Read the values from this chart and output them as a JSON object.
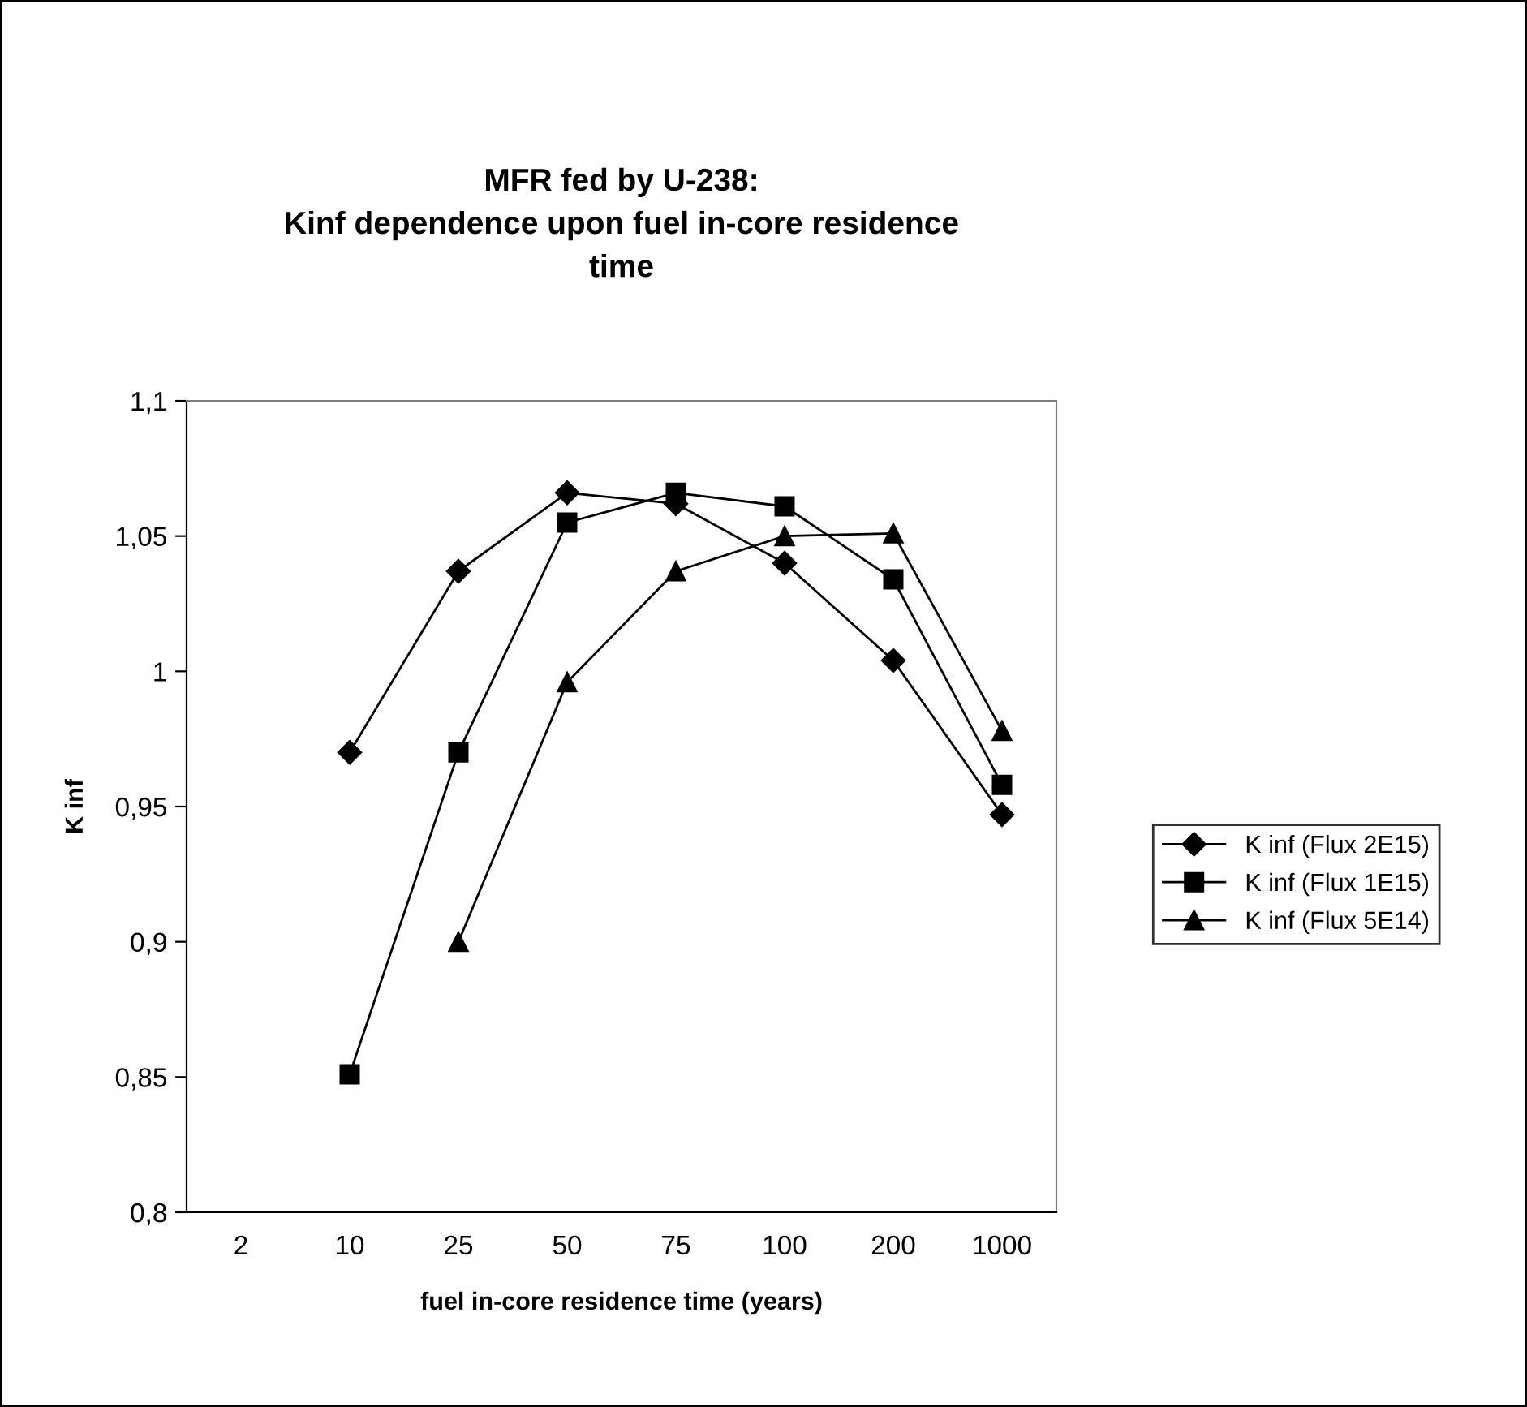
{
  "chart_data": {
    "type": "line",
    "title": "MFR fed by U-238:\nKinf dependence upon fuel in-core residence\ntime",
    "xlabel": "fuel in-core residence time (years)",
    "ylabel": "K inf",
    "categories": [
      "2",
      "10",
      "25",
      "50",
      "75",
      "100",
      "200",
      "1000"
    ],
    "series": [
      {
        "name": "K inf (Flux 2E15)",
        "color": "#000000",
        "marker": "diamond",
        "values": [
          null,
          0.97,
          1.037,
          1.066,
          1.062,
          1.04,
          1.004,
          0.947
        ]
      },
      {
        "name": "K inf (Flux 1E15)",
        "color": "#000000",
        "marker": "square",
        "values": [
          null,
          0.851,
          0.97,
          1.055,
          1.066,
          1.061,
          1.034,
          0.958
        ]
      },
      {
        "name": "K inf (Flux 5E14)",
        "color": "#000000",
        "marker": "triangle",
        "values": [
          null,
          null,
          0.9,
          0.996,
          1.037,
          1.05,
          1.051,
          0.978
        ]
      }
    ],
    "ylim": [
      0.8,
      1.1
    ],
    "yticks": [
      {
        "value": 0.8,
        "label": "0,8"
      },
      {
        "value": 0.85,
        "label": "0,85"
      },
      {
        "value": 0.9,
        "label": "0,9"
      },
      {
        "value": 0.95,
        "label": "0,95"
      },
      1,
      {
        "value": 1.05,
        "label": "1,05"
      },
      {
        "value": 1.1,
        "label": "1,1"
      }
    ],
    "grid": false,
    "legend": "right",
    "line_style": "solid"
  }
}
